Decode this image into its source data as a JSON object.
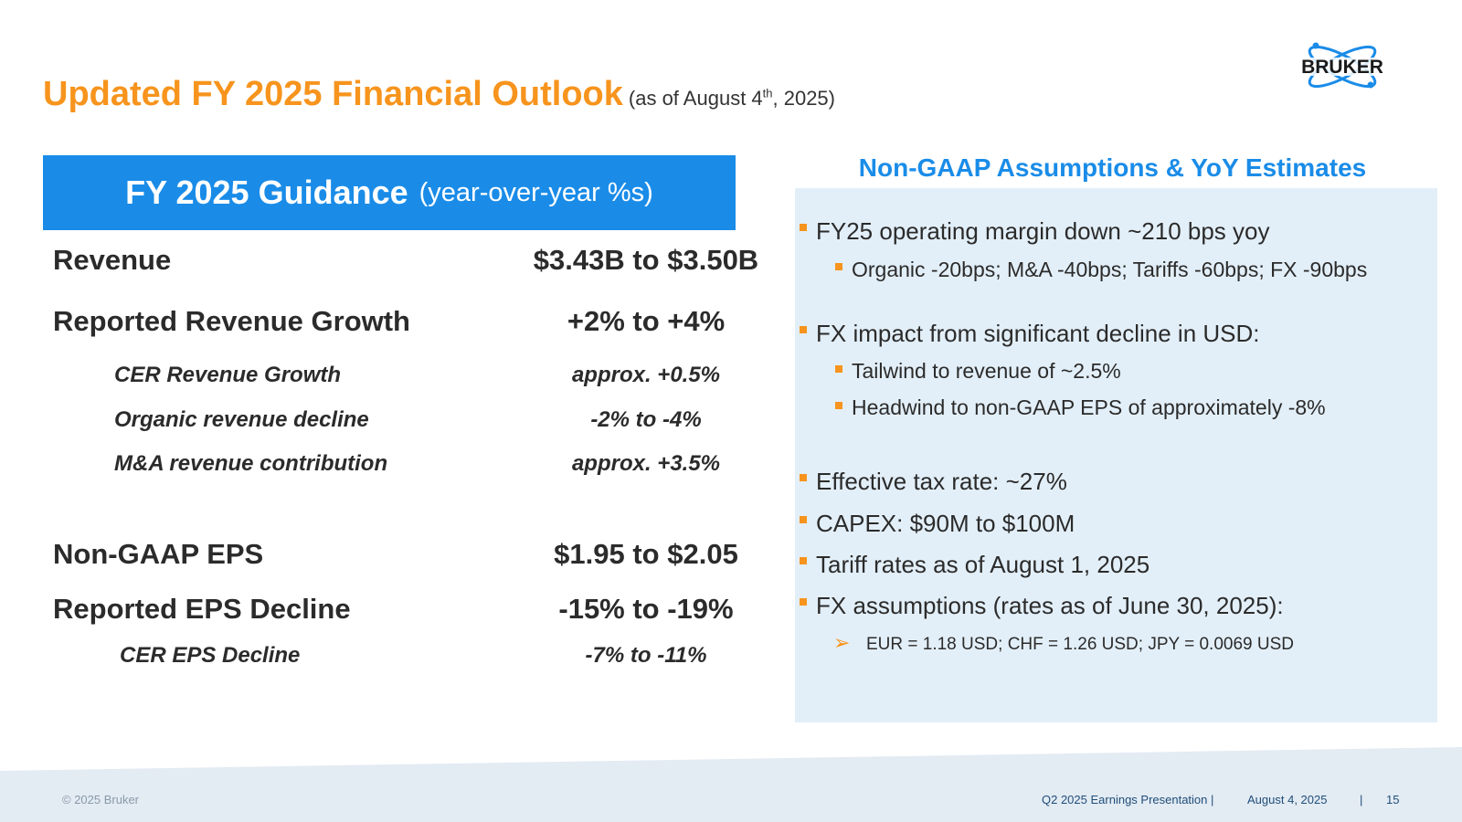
{
  "slide": {
    "title": "Updated FY 2025 Financial Outlook",
    "subtitle_pre": "(as of August 4",
    "subtitle_sup": "th",
    "subtitle_post": ", 2025)"
  },
  "logo": {
    "text": "BRUKER"
  },
  "guidance": {
    "header_main": "FY 2025 Guidance",
    "header_sub": "(year-over-year %s)",
    "rows": [
      {
        "label": "Revenue",
        "value": "$3.43B to $3.50B"
      },
      {
        "label": "Reported Revenue Growth",
        "value": "+2% to +4%"
      },
      {
        "label": "CER Revenue Growth",
        "value": "approx. +0.5%"
      },
      {
        "label": "Organic revenue decline",
        "value": "-2% to -4%"
      },
      {
        "label": "M&A revenue contribution",
        "value": "approx. +3.5%"
      },
      {
        "label": "Non-GAAP EPS",
        "value": "$1.95 to $2.05"
      },
      {
        "label": "Reported EPS Decline",
        "value": "-15% to -19%"
      },
      {
        "label": "CER EPS Decline",
        "value": "-7% to -11%"
      }
    ]
  },
  "assumptions": {
    "title": "Non-GAAP Assumptions & YoY Estimates",
    "items": [
      "FY25 operating margin down ~210 bps yoy",
      "Organic -20bps; M&A -40bps; Tariffs -60bps; FX -90bps",
      "FX impact from significant decline in USD:",
      "Tailwind to revenue of ~2.5%",
      "Headwind to non-GAAP EPS of approximately -8%",
      "Effective tax rate: ~27%",
      "CAPEX: $90M to $100M",
      "Tariff rates as of August 1, 2025",
      "FX assumptions (rates as of June 30, 2025):",
      "EUR = 1.18 USD; CHF = 1.26 USD; JPY = 0.0069 USD"
    ]
  },
  "footer": {
    "copyright": "© 2025 Bruker",
    "presentation": "Q2 2025 Earnings Presentation |",
    "date": "August 4, 2025",
    "separator": "|",
    "page": "15"
  },
  "colors": {
    "accent_orange": "#f7941d",
    "brand_blue": "#1a8ce8",
    "panel_bg": "#e3eff8",
    "footer_bg": "#e3ebf3"
  }
}
